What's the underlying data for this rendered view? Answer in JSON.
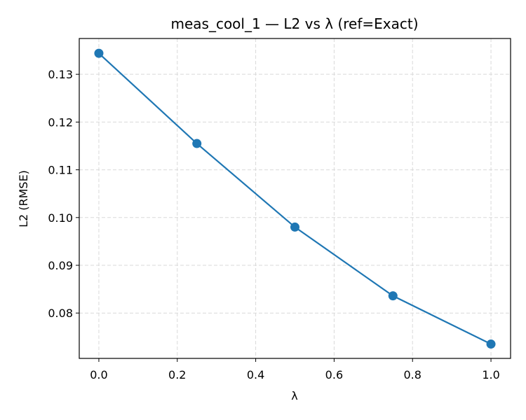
{
  "chart_data": {
    "type": "line",
    "title": "meas_cool_1 — L2 vs λ (ref=Exact)",
    "xlabel": "λ",
    "ylabel": "L2 (RMSE)",
    "xlim": [
      -0.05,
      1.05
    ],
    "ylim": [
      0.0705,
      0.1375
    ],
    "xticks": [
      0.0,
      0.2,
      0.4,
      0.6,
      0.8,
      1.0
    ],
    "xtick_labels": [
      "0.0",
      "0.2",
      "0.4",
      "0.6",
      "0.8",
      "1.0"
    ],
    "yticks": [
      0.08,
      0.09,
      0.1,
      0.11,
      0.12,
      0.13
    ],
    "ytick_labels": [
      "0.08",
      "0.09",
      "0.10",
      "0.11",
      "0.12",
      "0.13"
    ],
    "grid": true,
    "legend": "none",
    "series": [
      {
        "color": "#1f77b4",
        "x": [
          0.0,
          0.25,
          0.5,
          0.75,
          1.0
        ],
        "y": [
          0.1344,
          0.1155,
          0.098,
          0.0836,
          0.0735
        ]
      }
    ]
  }
}
